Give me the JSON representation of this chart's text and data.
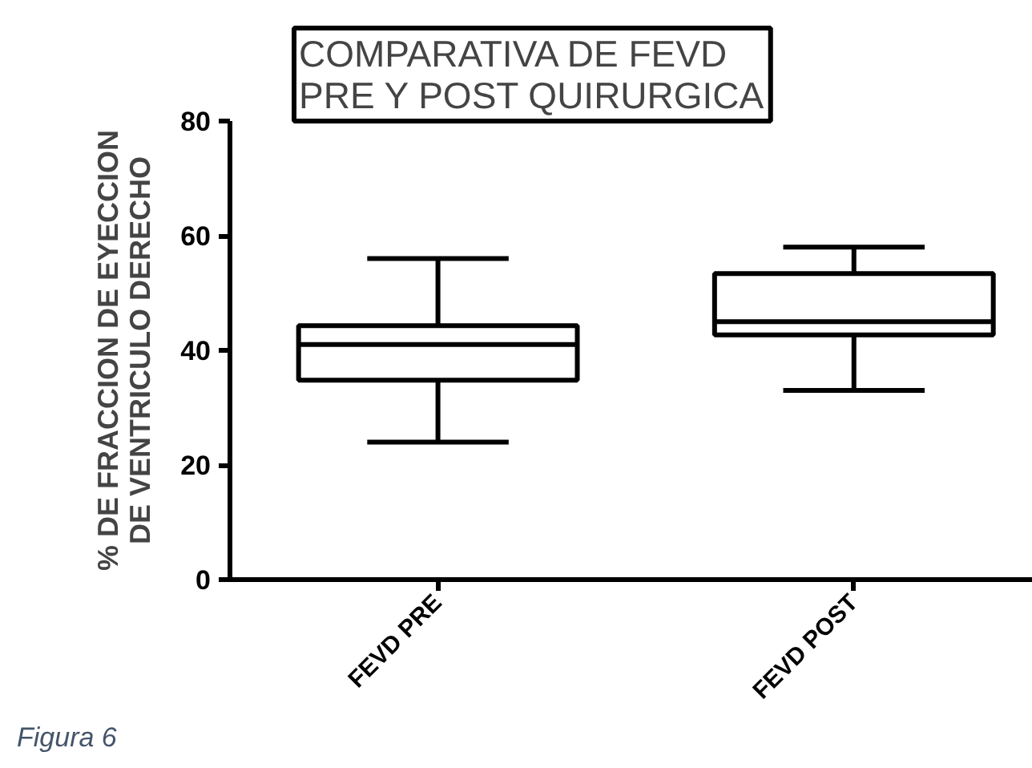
{
  "chart_data": {
    "type": "box",
    "title": "COMPARATIVA DE FEVD\nPRE Y POST QUIRURGICA",
    "ylabel": "% DE FRACCION DE EYECCION\nDE VENTRICULO DERECHO",
    "categories": [
      "FEVD PRE",
      "FEVD POST"
    ],
    "boxes": [
      {
        "low": 24,
        "q1": 34.8,
        "median": 41,
        "q3": 44.3,
        "high": 56
      },
      {
        "low": 33,
        "q1": 42.7,
        "median": 45,
        "q3": 53.4,
        "high": 58
      }
    ],
    "ylim": [
      0,
      80
    ],
    "yticks": [
      0,
      20,
      40,
      60,
      80
    ],
    "annotations": [
      "Figura 6"
    ]
  }
}
